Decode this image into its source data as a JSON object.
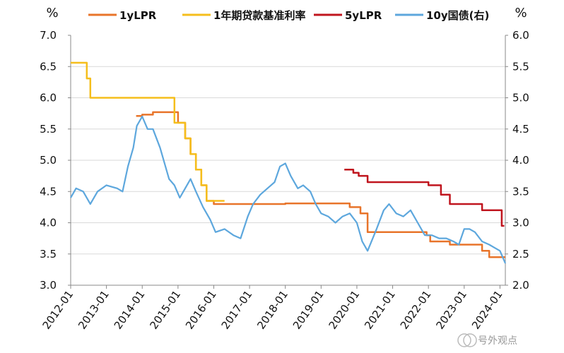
{
  "chart_data": {
    "type": "line",
    "left_unit": "%",
    "right_unit": "%",
    "y_left_ticks": [
      "7.0",
      "6.5",
      "6.0",
      "5.5",
      "5.0",
      "4.5",
      "4.0",
      "3.5",
      "3.0"
    ],
    "y_right_ticks": [
      "6.0",
      "5.5",
      "5.0",
      "4.5",
      "4.0",
      "3.5",
      "3.0",
      "2.5",
      "2.0"
    ],
    "ylim_left": [
      3.0,
      7.0
    ],
    "ylim_right": [
      2.0,
      6.0
    ],
    "x_ticks": [
      "2012-01",
      "2013-01",
      "2014-01",
      "2015-01",
      "2016-01",
      "2017-01",
      "2018-01",
      "2019-01",
      "2020-01",
      "2021-01",
      "2022-01",
      "2023-01",
      "2024-01"
    ],
    "xlim": [
      2012.0,
      2024.15
    ],
    "grid": "horizontal",
    "series": [
      {
        "name": "1yLPR",
        "axis": "left",
        "color": "#E8742A",
        "step": true,
        "x": [
          2013.83,
          2014.0,
          2014.3,
          2015.0,
          2015.2,
          2015.35,
          2015.5,
          2015.65,
          2015.8,
          2016.0,
          2017.0,
          2018.0,
          2019.0,
          2019.6,
          2019.8,
          2020.1,
          2020.3,
          2021.0,
          2021.95,
          2022.05,
          2022.6,
          2023.0,
          2023.5,
          2023.7,
          2024.15
        ],
        "values": [
          5.71,
          5.73,
          5.77,
          5.6,
          5.35,
          5.1,
          4.85,
          4.6,
          4.35,
          4.3,
          4.3,
          4.31,
          4.31,
          4.31,
          4.25,
          4.15,
          3.85,
          3.85,
          3.8,
          3.7,
          3.65,
          3.65,
          3.55,
          3.45,
          3.45
        ]
      },
      {
        "name": "1年期贷款基准利率",
        "axis": "left",
        "color": "#F5BE1C",
        "step": true,
        "x": [
          2012.0,
          2012.45,
          2012.55,
          2014.9,
          2015.2,
          2015.35,
          2015.5,
          2015.65,
          2015.8,
          2016.3
        ],
        "values": [
          6.56,
          6.31,
          6.0,
          5.6,
          5.35,
          5.1,
          4.85,
          4.6,
          4.35,
          4.35
        ]
      },
      {
        "name": "5yLPR",
        "axis": "left",
        "color": "#C0151E",
        "step": true,
        "x": [
          2019.65,
          2019.9,
          2020.05,
          2020.3,
          2020.4,
          2021.0,
          2021.5,
          2022.0,
          2022.35,
          2022.6,
          2022.75,
          2023.0,
          2023.5,
          2023.85,
          2024.05,
          2024.12
        ],
        "values": [
          4.85,
          4.8,
          4.75,
          4.65,
          4.65,
          4.65,
          4.65,
          4.6,
          4.45,
          4.3,
          4.3,
          4.3,
          4.2,
          4.2,
          3.95,
          3.95
        ]
      },
      {
        "name": "10y国债(右)",
        "axis": "right",
        "color": "#5DA7DD",
        "step": false,
        "x": [
          2012.0,
          2012.15,
          2012.35,
          2012.55,
          2012.75,
          2013.0,
          2013.3,
          2013.45,
          2013.6,
          2013.75,
          2013.85,
          2014.0,
          2014.15,
          2014.3,
          2014.5,
          2014.75,
          2014.9,
          2015.05,
          2015.2,
          2015.35,
          2015.5,
          2015.7,
          2015.9,
          2016.05,
          2016.3,
          2016.55,
          2016.75,
          2016.95,
          2017.1,
          2017.3,
          2017.5,
          2017.7,
          2017.85,
          2018.0,
          2018.15,
          2018.35,
          2018.5,
          2018.7,
          2018.85,
          2019.0,
          2019.2,
          2019.4,
          2019.6,
          2019.8,
          2020.0,
          2020.15,
          2020.3,
          2020.55,
          2020.75,
          2020.9,
          2021.1,
          2021.3,
          2021.5,
          2021.7,
          2021.9,
          2022.1,
          2022.3,
          2022.5,
          2022.7,
          2022.85,
          2023.0,
          2023.15,
          2023.3,
          2023.5,
          2023.7,
          2023.85,
          2024.0,
          2024.15
        ],
        "values": [
          3.4,
          3.55,
          3.5,
          3.3,
          3.5,
          3.6,
          3.55,
          3.5,
          3.9,
          4.2,
          4.55,
          4.7,
          4.5,
          4.5,
          4.2,
          3.7,
          3.6,
          3.4,
          3.55,
          3.7,
          3.5,
          3.25,
          3.05,
          2.85,
          2.9,
          2.8,
          2.75,
          3.1,
          3.3,
          3.45,
          3.55,
          3.65,
          3.9,
          3.95,
          3.75,
          3.55,
          3.6,
          3.5,
          3.3,
          3.15,
          3.1,
          3.0,
          3.1,
          3.15,
          3.0,
          2.7,
          2.55,
          2.9,
          3.2,
          3.3,
          3.15,
          3.1,
          3.2,
          3.0,
          2.8,
          2.8,
          2.75,
          2.75,
          2.7,
          2.65,
          2.9,
          2.9,
          2.85,
          2.7,
          2.65,
          2.6,
          2.55,
          2.35
        ]
      }
    ]
  },
  "watermark": "号外观点"
}
